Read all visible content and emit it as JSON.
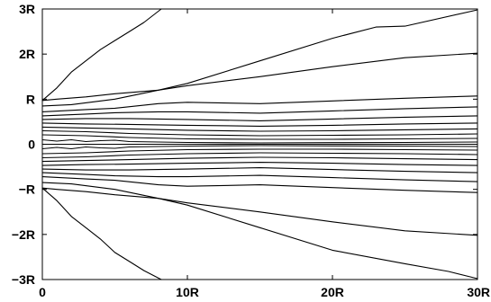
{
  "chart_data": {
    "type": "line",
    "title": "",
    "xlabel": "",
    "ylabel": "",
    "xlim": [
      0,
      30
    ],
    "ylim": [
      -3,
      3
    ],
    "grid": false,
    "x_ticks": [
      {
        "value": 0,
        "label": "0"
      },
      {
        "value": 10,
        "label": "10R"
      },
      {
        "value": 20,
        "label": "20R"
      },
      {
        "value": 30,
        "label": "30R"
      }
    ],
    "y_ticks": [
      {
        "value": 3,
        "label": "3R"
      },
      {
        "value": 2,
        "label": "2R"
      },
      {
        "value": 1,
        "label": "R"
      },
      {
        "value": 0,
        "label": "0"
      },
      {
        "value": -1,
        "label": "−R"
      },
      {
        "value": -2,
        "label": "−2R"
      },
      {
        "value": -3,
        "label": "−3R"
      }
    ],
    "series": [
      {
        "x": [
          0,
          1,
          2,
          3,
          4,
          5,
          6,
          7,
          8.2
        ],
        "y": [
          0.97,
          1.25,
          1.6,
          1.85,
          2.1,
          2.3,
          2.5,
          2.7,
          3.0
        ]
      },
      {
        "x": [
          0,
          1,
          3,
          5,
          8,
          10,
          15,
          20,
          23,
          25,
          30
        ],
        "y": [
          0.97,
          1.0,
          1.05,
          1.12,
          1.2,
          1.35,
          1.85,
          2.35,
          2.6,
          2.62,
          2.98
        ]
      },
      {
        "x": [
          0,
          2,
          5,
          8,
          10,
          15,
          20,
          25,
          30
        ],
        "y": [
          0.85,
          0.88,
          1.0,
          1.2,
          1.3,
          1.5,
          1.72,
          1.92,
          2.02
        ]
      },
      {
        "x": [
          0,
          3,
          5,
          8,
          10,
          15,
          20,
          25,
          30
        ],
        "y": [
          0.72,
          0.77,
          0.8,
          0.9,
          0.93,
          0.9,
          0.96,
          1.02,
          1.07
        ]
      },
      {
        "x": [
          0,
          3,
          5,
          8,
          10,
          15,
          20,
          25,
          30
        ],
        "y": [
          0.63,
          0.67,
          0.7,
          0.72,
          0.72,
          0.69,
          0.74,
          0.79,
          0.83
        ]
      },
      {
        "x": [
          0,
          3,
          6,
          10,
          15,
          20,
          25,
          30
        ],
        "y": [
          0.55,
          0.57,
          0.57,
          0.55,
          0.52,
          0.56,
          0.6,
          0.63
        ]
      },
      {
        "x": [
          0,
          3,
          6,
          10,
          15,
          20,
          25,
          30
        ],
        "y": [
          0.47,
          0.45,
          0.44,
          0.42,
          0.4,
          0.42,
          0.45,
          0.47
        ]
      },
      {
        "x": [
          0,
          3,
          6,
          10,
          15,
          20,
          25,
          30
        ],
        "y": [
          0.38,
          0.36,
          0.34,
          0.31,
          0.29,
          0.3,
          0.32,
          0.34
        ]
      },
      {
        "x": [
          0,
          3,
          6,
          10,
          15,
          20,
          25,
          30
        ],
        "y": [
          0.3,
          0.28,
          0.24,
          0.21,
          0.19,
          0.2,
          0.21,
          0.23
        ]
      },
      {
        "x": [
          0,
          3,
          6,
          10,
          15,
          20,
          25,
          30
        ],
        "y": [
          0.21,
          0.19,
          0.15,
          0.12,
          0.11,
          0.11,
          0.12,
          0.13
        ]
      },
      {
        "x": [
          0,
          1,
          2,
          3,
          4,
          5,
          6,
          10,
          15,
          20,
          25,
          30
        ],
        "y": [
          0.1,
          0.07,
          0.1,
          0.06,
          0.08,
          0.09,
          0.06,
          0.04,
          0.03,
          0.035,
          0.04,
          0.05
        ]
      },
      {
        "x": [
          0,
          30
        ],
        "y": [
          0,
          0
        ]
      },
      {
        "x": [
          0,
          1,
          2,
          3,
          4,
          5,
          6,
          10,
          15,
          20,
          25,
          30
        ],
        "y": [
          -0.1,
          -0.07,
          -0.1,
          -0.06,
          -0.08,
          -0.09,
          -0.06,
          -0.04,
          -0.03,
          -0.035,
          -0.04,
          -0.05
        ]
      },
      {
        "x": [
          0,
          3,
          6,
          10,
          15,
          20,
          25,
          30
        ],
        "y": [
          -0.21,
          -0.19,
          -0.15,
          -0.12,
          -0.11,
          -0.11,
          -0.12,
          -0.13
        ]
      },
      {
        "x": [
          0,
          3,
          6,
          10,
          15,
          20,
          25,
          30
        ],
        "y": [
          -0.3,
          -0.28,
          -0.24,
          -0.21,
          -0.19,
          -0.2,
          -0.21,
          -0.23
        ]
      },
      {
        "x": [
          0,
          3,
          6,
          10,
          15,
          20,
          25,
          30
        ],
        "y": [
          -0.38,
          -0.36,
          -0.34,
          -0.31,
          -0.29,
          -0.3,
          -0.32,
          -0.34
        ]
      },
      {
        "x": [
          0,
          3,
          6,
          10,
          15,
          20,
          25,
          30
        ],
        "y": [
          -0.47,
          -0.45,
          -0.44,
          -0.42,
          -0.4,
          -0.42,
          -0.45,
          -0.47
        ]
      },
      {
        "x": [
          0,
          3,
          6,
          10,
          15,
          20,
          25,
          30
        ],
        "y": [
          -0.55,
          -0.57,
          -0.57,
          -0.55,
          -0.52,
          -0.56,
          -0.6,
          -0.63
        ]
      },
      {
        "x": [
          0,
          3,
          5,
          8,
          10,
          15,
          20,
          25,
          30
        ],
        "y": [
          -0.63,
          -0.67,
          -0.7,
          -0.72,
          -0.72,
          -0.69,
          -0.74,
          -0.79,
          -0.83
        ]
      },
      {
        "x": [
          0,
          3,
          5,
          8,
          10,
          15,
          20,
          25,
          30
        ],
        "y": [
          -0.72,
          -0.77,
          -0.8,
          -0.9,
          -0.93,
          -0.9,
          -0.96,
          -1.02,
          -1.07
        ]
      },
      {
        "x": [
          0,
          2,
          5,
          8,
          10,
          15,
          20,
          25,
          30
        ],
        "y": [
          -0.85,
          -0.88,
          -1.0,
          -1.2,
          -1.3,
          -1.5,
          -1.72,
          -1.92,
          -2.02
        ]
      },
      {
        "x": [
          0,
          1,
          3,
          5,
          8,
          10,
          15,
          20,
          25,
          28,
          30
        ],
        "y": [
          -0.97,
          -1.0,
          -1.05,
          -1.12,
          -1.2,
          -1.35,
          -1.85,
          -2.35,
          -2.65,
          -2.82,
          -2.98
        ]
      },
      {
        "x": [
          0,
          1,
          2,
          3,
          4,
          5,
          6,
          7,
          8.2
        ],
        "y": [
          -0.97,
          -1.25,
          -1.6,
          -1.85,
          -2.1,
          -2.4,
          -2.6,
          -2.8,
          -3.0
        ]
      }
    ]
  }
}
